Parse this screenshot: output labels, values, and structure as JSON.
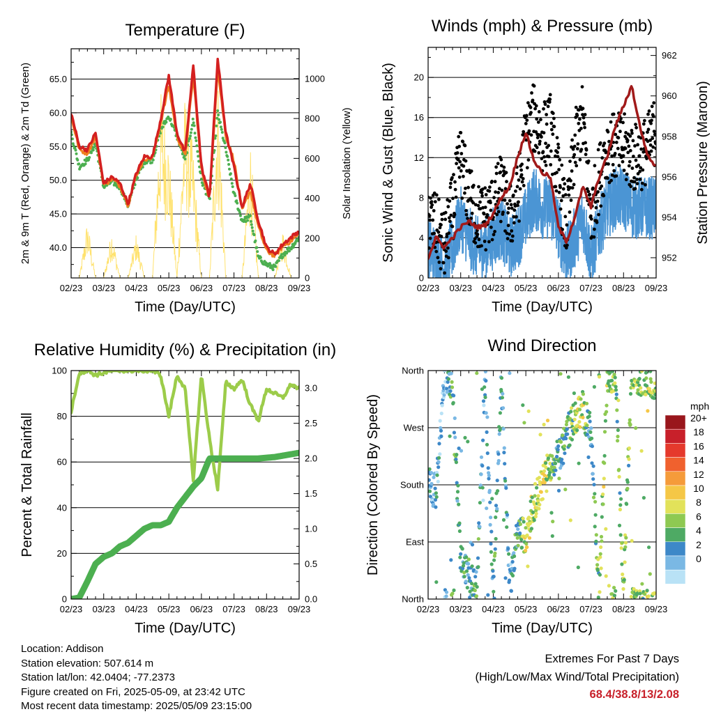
{
  "x_ticks": [
    "02/23",
    "03/23",
    "04/23",
    "05/23",
    "06/23",
    "07/23",
    "08/23",
    "09/23"
  ],
  "temperature": {
    "title": "Temperature (F)",
    "ylabel_left": "2m & 9m T (Red, Orange) & 2m Td (Green)",
    "ylabel_right": "Solar Insolation (Yellow)",
    "xlabel": "Time (Day/UTC)",
    "left_ticks": [
      "40.0",
      "45.0",
      "50.0",
      "55.0",
      "60.0",
      "65.0"
    ],
    "right_ticks": [
      "0",
      "200",
      "400",
      "600",
      "800",
      "1000"
    ]
  },
  "winds": {
    "title": "Winds (mph) & Pressure (mb)",
    "ylabel_left": "Sonic Wind & Gust (Blue, Black)",
    "ylabel_right": "Station Pressure (Maroon)",
    "xlabel": "Time (Day/UTC)",
    "left_ticks": [
      "0",
      "4",
      "8",
      "12",
      "16",
      "20"
    ],
    "right_ticks": [
      "952",
      "954",
      "956",
      "958",
      "960",
      "962"
    ]
  },
  "humidity": {
    "title": "Relative Humidity (%) & Precipitation (in)",
    "ylabel_left": "Percent & Total Rainfall",
    "xlabel": "Time (Day/UTC)",
    "left_ticks": [
      "0",
      "20",
      "40",
      "60",
      "80",
      "100"
    ],
    "right_ticks": [
      "0.0",
      "0.5",
      "1.0",
      "1.5",
      "2.0",
      "2.5",
      "3.0"
    ]
  },
  "direction": {
    "title": "Wind Direction",
    "ylabel_left": "Direction (Colored By Speed)",
    "xlabel": "Time (Day/UTC)",
    "left_ticks": [
      "North",
      "East",
      "South",
      "West",
      "North"
    ]
  },
  "colorbar": {
    "title": "mph",
    "labels": [
      "20+",
      "18",
      "16",
      "14",
      "12",
      "10",
      "8",
      "6",
      "4",
      "2",
      "0"
    ],
    "colors": [
      "#99161c",
      "#c8202a",
      "#e5392c",
      "#f0612e",
      "#f59b3a",
      "#f5c746",
      "#e2e25a",
      "#8ec952",
      "#4eaa64",
      "#3d88c8",
      "#7ab8e4",
      "#b9e2f6"
    ]
  },
  "colors": {
    "temp_2m": "#d42020",
    "temp_9m": "#f07f1f",
    "dewpoint": "#4caf50",
    "solar": "#ffe26e",
    "wind": "#4b95d4",
    "gust": "#000000",
    "pressure": "#a11a1a",
    "rh": "#9ccc4a",
    "precip": "#4caf50"
  },
  "info": {
    "location": "Location: Addison",
    "elevation": "Station elevation: 507.614 m",
    "latlon": "Station lat/lon: 42.0404; -77.2373",
    "created": "Figure created on Fri, 2025-05-09, at 23:42 UTC",
    "recent": "Most recent data timestamp: 2025/05/09 23:15:00"
  },
  "extremes": {
    "line1": "Extremes For Past 7 Days",
    "line2": "(High/Low/Max Wind/Total Precipitation)",
    "values": "68.4/38.8/13/2.08"
  },
  "chart_data": [
    {
      "type": "line",
      "title": "Temperature (F)",
      "xlabel": "Time (Day/UTC)",
      "ylabel": "2m & 9m T (Red, Orange) & 2m Td (Green)",
      "y2label": "Solar Insolation (Yellow)",
      "ylim": [
        35.5,
        69.5
      ],
      "y2lim": [
        0,
        1150
      ],
      "x": [
        0,
        0.25,
        0.5,
        0.75,
        1,
        1.25,
        1.5,
        1.75,
        2,
        2.25,
        2.5,
        2.75,
        3,
        3.25,
        3.5,
        3.75,
        4,
        4.25,
        4.5,
        4.75,
        5,
        5.25,
        5.5,
        5.75,
        6,
        6.25,
        6.5,
        6.75,
        7
      ],
      "series": [
        {
          "name": "2m T",
          "values": [
            60.0,
            55.0,
            54.5,
            57.0,
            49.5,
            50.5,
            49.5,
            46.5,
            51.0,
            53.5,
            53.5,
            59.0,
            65.5,
            57.0,
            54.0,
            67.0,
            52.0,
            47.5,
            68.0,
            57.0,
            52.0,
            46.0,
            49.5,
            44.0,
            40.0,
            39.0,
            40.5,
            41.5,
            42.5
          ]
        },
        {
          "name": "9m T",
          "values": [
            59.5,
            54.5,
            54.0,
            56.5,
            49.3,
            50.2,
            49.2,
            46.3,
            50.8,
            53.2,
            53.3,
            58.5,
            64.0,
            56.5,
            53.5,
            65.5,
            51.5,
            47.2,
            66.5,
            56.5,
            53.0,
            45.5,
            48.5,
            43.0,
            39.5,
            38.8,
            40.2,
            41.0,
            42.0
          ]
        },
        {
          "name": "2m Td",
          "values": [
            57.0,
            52.0,
            53.0,
            55.5,
            49.0,
            49.8,
            49.0,
            46.2,
            50.3,
            52.8,
            53.0,
            57.5,
            59.5,
            56.5,
            53.0,
            59.0,
            50.0,
            47.0,
            60.0,
            54.5,
            48.0,
            44.0,
            44.5,
            38.5,
            37.5,
            37.0,
            39.0,
            40.0,
            41.5
          ]
        },
        {
          "name": "Solar",
          "values": [
            0,
            0,
            300,
            0,
            0,
            250,
            0,
            0,
            230,
            0,
            0,
            950,
            700,
            0,
            950,
            650,
            0,
            0,
            1050,
            0,
            0,
            0,
            720,
            0,
            0,
            0,
            250,
            0,
            0
          ]
        }
      ]
    },
    {
      "type": "line",
      "title": "Winds (mph) & Pressure (mb)",
      "xlabel": "Time (Day/UTC)",
      "ylabel": "Sonic Wind & Gust (Blue, Black)",
      "y2label": "Station Pressure (Maroon)",
      "ylim": [
        0,
        23
      ],
      "y2lim": [
        951.0,
        962.4
      ],
      "x": [
        0,
        0.25,
        0.5,
        0.75,
        1,
        1.25,
        1.5,
        1.75,
        2,
        2.25,
        2.5,
        2.75,
        3,
        3.25,
        3.5,
        3.75,
        4,
        4.25,
        4.5,
        4.75,
        5,
        5.25,
        5.5,
        5.75,
        6,
        6.25,
        6.5,
        6.75,
        7
      ],
      "series": [
        {
          "name": "Wind",
          "values": [
            3,
            2,
            1,
            3,
            6,
            4,
            3,
            3,
            4,
            5,
            3,
            4,
            6,
            8,
            7,
            7,
            5,
            2,
            4,
            6,
            2,
            5,
            7,
            8,
            8,
            7,
            7,
            7,
            7
          ]
        },
        {
          "name": "Gust",
          "values": [
            6,
            5,
            3,
            7,
            12,
            8,
            6,
            6,
            7,
            9,
            6,
            8,
            14,
            16,
            14,
            15,
            10,
            5,
            13,
            16,
            6,
            10,
            13,
            13,
            13,
            12,
            12,
            13,
            15
          ]
        },
        {
          "name": "Pressure",
          "values": [
            952.0,
            953.0,
            952.5,
            953.0,
            953.5,
            953.8,
            953.5,
            953.6,
            954.2,
            955.0,
            955.5,
            957.0,
            958.2,
            956.8,
            956.2,
            956.0,
            953.5,
            952.8,
            954.0,
            955.5,
            954.5,
            956.0,
            957.0,
            958.5,
            959.5,
            960.5,
            958.5,
            957.0,
            956.5
          ]
        }
      ]
    },
    {
      "type": "line",
      "title": "Relative Humidity (%) & Precipitation (in)",
      "xlabel": "Time (Day/UTC)",
      "ylabel": "Percent & Total Rainfall",
      "ylim": [
        0,
        100
      ],
      "y2lim": [
        0,
        3.25
      ],
      "x": [
        0,
        0.25,
        0.5,
        0.75,
        1,
        1.25,
        1.5,
        1.75,
        2,
        2.25,
        2.5,
        2.75,
        3,
        3.25,
        3.5,
        3.75,
        4,
        4.25,
        4.5,
        4.75,
        5,
        5.25,
        5.5,
        5.75,
        6,
        6.25,
        6.5,
        6.75,
        7
      ],
      "series": [
        {
          "name": "RH",
          "values": [
            82,
            99,
            100,
            98,
            99,
            100,
            100,
            100,
            100,
            100,
            100,
            98,
            80,
            98,
            92,
            52,
            98,
            70,
            48,
            95,
            92,
            96,
            85,
            78,
            92,
            90,
            88,
            94,
            92
          ]
        },
        {
          "name": "Precip",
          "values": [
            0,
            0.02,
            0.25,
            0.5,
            0.6,
            0.65,
            0.75,
            0.8,
            0.9,
            1.0,
            1.05,
            1.05,
            1.1,
            1.3,
            1.45,
            1.6,
            1.72,
            2.0,
            2.0,
            2.0,
            2.0,
            2.0,
            2.0,
            2.0,
            2.01,
            2.02,
            2.04,
            2.06,
            2.08
          ]
        }
      ]
    },
    {
      "type": "scatter",
      "title": "Wind Direction",
      "xlabel": "Time (Day/UTC)",
      "ylabel": "Direction (Colored By Speed)",
      "y_categories": [
        "North",
        "East",
        "South",
        "West",
        "North"
      ],
      "ylim": [
        0,
        360
      ],
      "x": [
        0,
        0.25,
        0.5,
        0.75,
        1,
        1.25,
        1.5,
        1.75,
        2,
        2.25,
        2.5,
        2.75,
        3,
        3.25,
        3.5,
        3.75,
        4,
        4.25,
        4.5,
        4.75,
        5,
        5.25,
        5.5,
        5.75,
        6,
        6.25,
        6.5,
        6.75,
        7
      ],
      "series": [
        {
          "name": "Direction",
          "values": [
            180,
            170,
            350,
            345,
            60,
            30,
            20,
            350,
            15,
            350,
            20,
            110,
            100,
            150,
            180,
            210,
            225,
            260,
            285,
            300,
            260,
            5,
            355,
            350,
            10,
            355,
            345,
            350,
            340
          ]
        },
        {
          "name": "Speed",
          "values": [
            3,
            3,
            2,
            6,
            4,
            5,
            6,
            3,
            5,
            4,
            3,
            5,
            10,
            8,
            11,
            8,
            5,
            6,
            8,
            9,
            3,
            8,
            9,
            7,
            8,
            7,
            7,
            9,
            8
          ]
        }
      ]
    }
  ]
}
